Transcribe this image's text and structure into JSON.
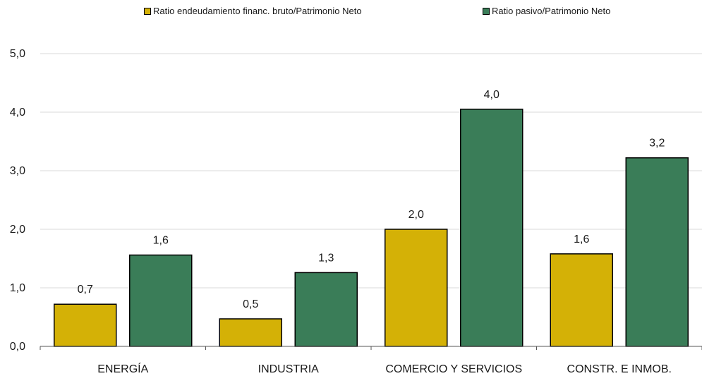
{
  "chart_data": {
    "type": "bar",
    "categories": [
      "ENERGÍA",
      "INDUSTRIA",
      "COMERCIO Y SERVICIOS",
      "CONSTR. E INMOB."
    ],
    "series": [
      {
        "name": "Ratio endeudamiento financ. bruto/Patrimonio Neto",
        "color": "#d4b106",
        "values": [
          0.72,
          0.47,
          2.0,
          1.58
        ],
        "labels": [
          "0,7",
          "0,5",
          "2,0",
          "1,6"
        ]
      },
      {
        "name": "Ratio pasivo/Patrimonio Neto",
        "color": "#3a7d58",
        "values": [
          1.56,
          1.26,
          4.05,
          3.22
        ],
        "labels": [
          "1,6",
          "1,3",
          "4,0",
          "3,2"
        ]
      }
    ],
    "ylim": [
      0,
      5
    ],
    "yticks": [
      0,
      1,
      2,
      3,
      4,
      5
    ],
    "ytick_labels": [
      "0,0",
      "1,0",
      "2,0",
      "3,0",
      "4,0",
      "5,0"
    ],
    "grid": true,
    "legend_position": "top"
  }
}
